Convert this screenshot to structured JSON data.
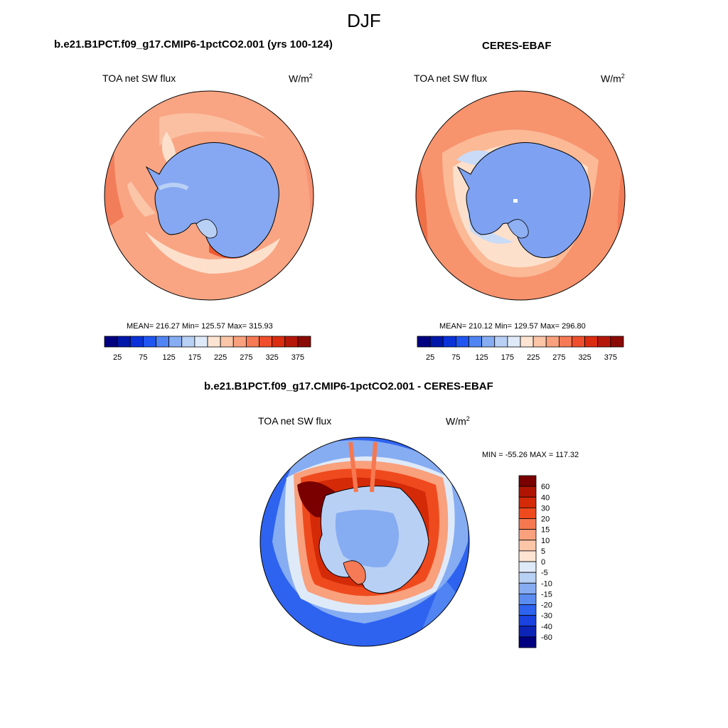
{
  "figure": {
    "title": "DJF",
    "diff_title": "b.e21.B1PCT.f09_g17.CMIP6-1pctCO2.001 - CERES-EBAF"
  },
  "panels": [
    {
      "title": "b.e21.B1PCT.f09_g17.CMIP6-1pctCO2.001 (yrs 100-124)",
      "variable": "TOA net SW flux",
      "units": "W/m",
      "units_exp": "2",
      "stats": "MEAN= 216.27  Min= 125.57  Max= 315.93"
    },
    {
      "title": "CERES-EBAF",
      "variable": "TOA net SW flux",
      "units": "W/m",
      "units_exp": "2",
      "stats": "MEAN= 210.12  Min= 129.57  Max= 296.80"
    },
    {
      "variable": "TOA net SW flux",
      "units": "W/m",
      "units_exp": "2",
      "stats": "MIN = -55.26 MAX = 117.32"
    }
  ],
  "colorbar_abs": {
    "labels": [
      "25",
      "75",
      "125",
      "175",
      "225",
      "275",
      "325",
      "375"
    ],
    "colors": [
      "#000080",
      "#0016a8",
      "#0a32d8",
      "#1f55f0",
      "#4f84f2",
      "#86acf2",
      "#b9d0f5",
      "#dfeaf9",
      "#fde4d2",
      "#fbc5a8",
      "#f9a07d",
      "#f57a55",
      "#ef4f2c",
      "#dc2c10",
      "#b5180a",
      "#8a0a05"
    ]
  },
  "colorbar_diff": {
    "labels": [
      "60",
      "40",
      "30",
      "20",
      "15",
      "10",
      "5",
      "0",
      "-5",
      "-10",
      "-15",
      "-20",
      "-30",
      "-40",
      "-60"
    ],
    "colors": [
      "#7a0000",
      "#b01504",
      "#d42a08",
      "#ef4a1e",
      "#f67850",
      "#f9a07d",
      "#fbc5a8",
      "#fde4d2",
      "#dfeaf9",
      "#b9d0f5",
      "#86acf2",
      "#5b8cf0",
      "#2e63f0",
      "#1a42e0",
      "#0c25b8",
      "#000080"
    ]
  }
}
